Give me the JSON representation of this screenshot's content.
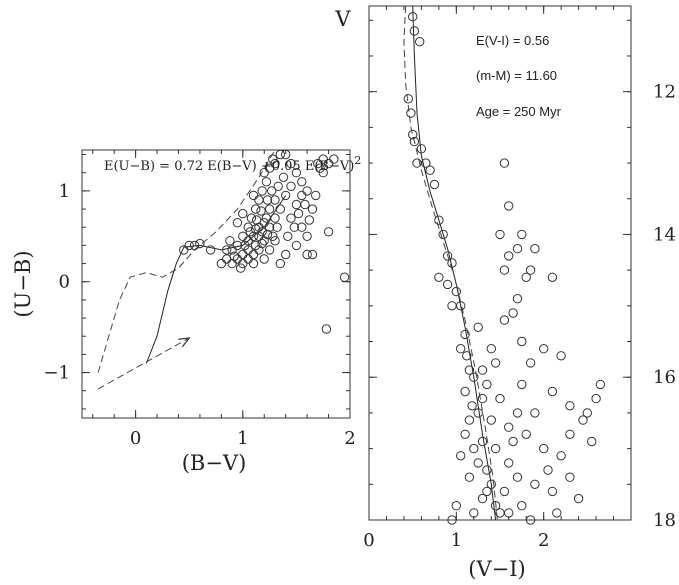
{
  "chart_data": [
    {
      "type": "scatter",
      "id": "two-color",
      "xlabel": "(B−V)",
      "ylabel": "(U−B)",
      "xlim": [
        -0.5,
        2.0
      ],
      "ylim": [
        1.45,
        -1.5
      ],
      "y_inverted": true,
      "x_ticks": [
        {
          "v": 0,
          "label": "0"
        },
        {
          "v": 1,
          "label": "1"
        },
        {
          "v": 2,
          "label": "2"
        }
      ],
      "y_ticks": [
        {
          "v": -1,
          "label": "−1"
        },
        {
          "v": 0,
          "label": "0"
        },
        {
          "v": 1,
          "label": "1"
        }
      ],
      "annotation": "E(U−B) = 0.72 E(B−V) +0.05 E(B−V)",
      "annotation_sup": "2",
      "reddening_arrow": {
        "from": [
          -0.35,
          -1.18
        ],
        "to": [
          0.5,
          -0.62
        ]
      },
      "solid_curve": [
        [
          0.1,
          -0.9
        ],
        [
          0.2,
          -0.6
        ],
        [
          0.3,
          -0.1
        ],
        [
          0.38,
          0.2
        ],
        [
          0.45,
          0.38
        ],
        [
          0.6,
          0.4
        ],
        [
          0.8,
          0.35
        ],
        [
          1.0,
          0.4
        ],
        [
          1.2,
          0.6
        ],
        [
          1.4,
          0.95
        ]
      ],
      "dashed_curve": [
        [
          -0.35,
          -1.0
        ],
        [
          -0.25,
          -0.6
        ],
        [
          -0.15,
          -0.2
        ],
        [
          -0.05,
          0.05
        ],
        [
          0.1,
          0.1
        ],
        [
          0.25,
          0.05
        ],
        [
          0.4,
          0.15
        ],
        [
          0.55,
          0.35
        ],
        [
          0.75,
          0.55
        ],
        [
          0.95,
          0.8
        ],
        [
          1.15,
          1.15
        ],
        [
          1.3,
          1.45
        ]
      ],
      "points": [
        [
          0.45,
          0.35
        ],
        [
          0.5,
          0.4
        ],
        [
          0.55,
          0.4
        ],
        [
          0.6,
          0.42
        ],
        [
          0.7,
          0.35
        ],
        [
          0.8,
          0.2
        ],
        [
          0.85,
          0.25
        ],
        [
          0.9,
          0.2
        ],
        [
          0.95,
          0.25
        ],
        [
          1.0,
          0.2
        ],
        [
          1.0,
          0.3
        ],
        [
          1.05,
          0.35
        ],
        [
          1.05,
          0.45
        ],
        [
          1.1,
          0.5
        ],
        [
          1.1,
          0.3
        ],
        [
          1.12,
          0.4
        ],
        [
          1.15,
          0.5
        ],
        [
          1.15,
          0.6
        ],
        [
          1.18,
          0.55
        ],
        [
          1.2,
          0.65
        ],
        [
          1.2,
          0.45
        ],
        [
          1.22,
          0.7
        ],
        [
          1.25,
          0.6
        ],
        [
          1.25,
          0.8
        ],
        [
          1.28,
          0.5
        ],
        [
          1.3,
          0.7
        ],
        [
          1.3,
          0.9
        ],
        [
          1.32,
          0.6
        ],
        [
          1.35,
          0.8
        ],
        [
          1.35,
          0.2
        ],
        [
          1.4,
          0.3
        ],
        [
          1.4,
          0.95
        ],
        [
          1.42,
          0.5
        ],
        [
          1.45,
          0.7
        ],
        [
          1.45,
          1.05
        ],
        [
          1.5,
          0.4
        ],
        [
          1.5,
          0.85
        ],
        [
          1.55,
          0.6
        ],
        [
          1.55,
          1.1
        ],
        [
          1.6,
          0.3
        ],
        [
          0.9,
          0.35
        ],
        [
          0.95,
          0.4
        ],
        [
          1.0,
          0.5
        ],
        [
          1.05,
          0.6
        ],
        [
          1.08,
          0.7
        ],
        [
          1.12,
          0.8
        ],
        [
          1.15,
          0.9
        ],
        [
          1.18,
          1.0
        ],
        [
          1.22,
          1.1
        ],
        [
          1.25,
          1.25
        ],
        [
          1.3,
          1.3
        ],
        [
          1.35,
          1.4
        ],
        [
          1.2,
          1.2
        ],
        [
          1.1,
          0.95
        ],
        [
          1.0,
          0.75
        ],
        [
          0.95,
          0.65
        ],
        [
          1.28,
          1.35
        ],
        [
          1.4,
          1.4
        ],
        [
          1.45,
          1.3
        ],
        [
          1.5,
          1.2
        ],
        [
          1.6,
          0.5
        ],
        [
          1.65,
          0.8
        ],
        [
          1.6,
          1.0
        ],
        [
          1.7,
          1.3
        ],
        [
          1.72,
          1.25
        ],
        [
          1.75,
          1.35
        ],
        [
          1.8,
          1.3
        ],
        [
          1.85,
          1.35
        ],
        [
          1.75,
          1.2
        ],
        [
          1.8,
          0.55
        ],
        [
          1.95,
          0.05
        ],
        [
          1.78,
          -0.52
        ],
        [
          1.65,
          0.3
        ],
        [
          1.68,
          0.95
        ],
        [
          1.55,
          0.95
        ],
        [
          1.1,
          0.2
        ],
        [
          1.2,
          0.25
        ],
        [
          1.25,
          0.35
        ],
        [
          1.3,
          0.45
        ],
        [
          1.15,
          0.35
        ],
        [
          1.05,
          0.25
        ],
        [
          0.98,
          0.15
        ],
        [
          0.92,
          0.28
        ],
        [
          0.88,
          0.45
        ],
        [
          0.85,
          0.35
        ],
        [
          1.02,
          0.4
        ],
        [
          1.07,
          0.55
        ],
        [
          1.13,
          0.68
        ],
        [
          1.17,
          0.78
        ],
        [
          1.23,
          0.9
        ],
        [
          1.27,
          1.0
        ],
        [
          1.33,
          1.05
        ],
        [
          1.38,
          1.15
        ],
        [
          1.48,
          0.6
        ],
        [
          1.52,
          0.75
        ],
        [
          1.58,
          0.85
        ],
        [
          1.62,
          0.68
        ],
        [
          1.12,
          0.58
        ],
        [
          1.18,
          0.42
        ],
        [
          1.23,
          0.52
        ]
      ]
    },
    {
      "type": "scatter",
      "id": "color-magnitude",
      "xlabel": "(V−I)",
      "ylabel": "V",
      "xlim": [
        0,
        3.0
      ],
      "ylim": [
        10.8,
        18.0
      ],
      "y_inverted": true,
      "x_ticks": [
        {
          "v": 0,
          "label": "0"
        },
        {
          "v": 1,
          "label": "1"
        },
        {
          "v": 2,
          "label": "2"
        }
      ],
      "y_ticks": [
        {
          "v": 12,
          "label": "12"
        },
        {
          "v": 14,
          "label": "14"
        },
        {
          "v": 16,
          "label": "16"
        },
        {
          "v": 18,
          "label": "18"
        }
      ],
      "annotations": [
        "E(V-I) = 0.56",
        "(m-M) = 11.60",
        "Age = 250 Myr"
      ],
      "solid_curve": [
        [
          0.5,
          10.8
        ],
        [
          0.52,
          11.5
        ],
        [
          0.55,
          12.3
        ],
        [
          0.6,
          12.9
        ],
        [
          0.7,
          13.4
        ],
        [
          0.8,
          13.8
        ],
        [
          0.9,
          14.2
        ],
        [
          1.0,
          14.7
        ],
        [
          1.1,
          15.3
        ],
        [
          1.2,
          16.0
        ],
        [
          1.3,
          16.8
        ],
        [
          1.4,
          17.5
        ],
        [
          1.45,
          18.0
        ]
      ],
      "dashed_curve": [
        [
          0.42,
          10.8
        ],
        [
          0.4,
          11.3
        ],
        [
          0.42,
          11.9
        ],
        [
          0.48,
          12.5
        ],
        [
          0.6,
          13.1
        ],
        [
          0.72,
          13.6
        ],
        [
          0.85,
          14.1
        ],
        [
          0.98,
          14.6
        ],
        [
          1.1,
          15.2
        ],
        [
          1.22,
          15.9
        ],
        [
          1.33,
          16.7
        ],
        [
          1.42,
          17.4
        ],
        [
          1.47,
          18.0
        ]
      ],
      "points": [
        [
          0.5,
          10.95
        ],
        [
          0.52,
          11.15
        ],
        [
          0.58,
          11.3
        ],
        [
          0.45,
          12.1
        ],
        [
          0.48,
          12.3
        ],
        [
          0.5,
          12.6
        ],
        [
          0.52,
          12.7
        ],
        [
          0.6,
          12.8
        ],
        [
          0.65,
          13.0
        ],
        [
          0.55,
          13.0
        ],
        [
          0.7,
          13.1
        ],
        [
          0.75,
          13.3
        ],
        [
          0.8,
          13.8
        ],
        [
          0.85,
          14.0
        ],
        [
          0.9,
          14.3
        ],
        [
          0.95,
          14.4
        ],
        [
          0.8,
          14.6
        ],
        [
          0.9,
          14.7
        ],
        [
          1.0,
          14.8
        ],
        [
          0.95,
          15.0
        ],
        [
          1.05,
          15.0
        ],
        [
          1.1,
          15.4
        ],
        [
          1.05,
          15.6
        ],
        [
          1.12,
          15.7
        ],
        [
          1.15,
          15.9
        ],
        [
          1.1,
          16.2
        ],
        [
          1.2,
          16.0
        ],
        [
          1.18,
          16.4
        ],
        [
          1.25,
          16.5
        ],
        [
          1.3,
          16.3
        ],
        [
          1.1,
          16.8
        ],
        [
          1.2,
          17.0
        ],
        [
          1.3,
          16.9
        ],
        [
          1.25,
          17.2
        ],
        [
          1.35,
          17.3
        ],
        [
          1.15,
          17.4
        ],
        [
          1.4,
          17.5
        ],
        [
          1.3,
          17.7
        ],
        [
          1.45,
          17.8
        ],
        [
          1.2,
          17.9
        ],
        [
          1.5,
          17.9
        ],
        [
          1.55,
          17.6
        ],
        [
          1.6,
          17.2
        ],
        [
          1.65,
          16.9
        ],
        [
          1.7,
          16.5
        ],
        [
          1.4,
          16.6
        ],
        [
          1.35,
          16.1
        ],
        [
          1.45,
          15.8
        ],
        [
          1.55,
          15.2
        ],
        [
          1.6,
          14.3
        ],
        [
          1.5,
          14.0
        ],
        [
          1.55,
          14.5
        ],
        [
          1.7,
          14.2
        ],
        [
          1.75,
          14.0
        ],
        [
          1.8,
          14.6
        ],
        [
          1.9,
          14.2
        ],
        [
          1.85,
          14.5
        ],
        [
          2.1,
          14.6
        ],
        [
          1.7,
          14.9
        ],
        [
          1.65,
          15.1
        ],
        [
          1.55,
          13.0
        ],
        [
          1.6,
          13.6
        ],
        [
          1.75,
          15.5
        ],
        [
          1.85,
          15.8
        ],
        [
          2.0,
          15.6
        ],
        [
          2.2,
          15.7
        ],
        [
          1.75,
          16.1
        ],
        [
          1.9,
          16.5
        ],
        [
          2.1,
          16.2
        ],
        [
          2.3,
          16.4
        ],
        [
          1.8,
          16.8
        ],
        [
          2.0,
          17.0
        ],
        [
          2.05,
          17.3
        ],
        [
          2.2,
          17.1
        ],
        [
          2.3,
          17.4
        ],
        [
          2.1,
          17.6
        ],
        [
          2.4,
          17.7
        ],
        [
          1.9,
          17.5
        ],
        [
          1.75,
          17.8
        ],
        [
          2.15,
          17.9
        ],
        [
          2.5,
          16.5
        ],
        [
          2.6,
          16.3
        ],
        [
          2.65,
          16.1
        ],
        [
          2.45,
          16.6
        ],
        [
          2.3,
          16.8
        ],
        [
          2.55,
          16.9
        ],
        [
          1.0,
          17.8
        ],
        [
          0.95,
          18.0
        ],
        [
          1.25,
          15.3
        ],
        [
          1.4,
          15.6
        ],
        [
          1.3,
          15.9
        ],
        [
          1.5,
          16.3
        ],
        [
          1.15,
          16.6
        ],
        [
          1.6,
          16.7
        ],
        [
          1.45,
          17.0
        ],
        [
          1.05,
          17.1
        ],
        [
          1.7,
          17.4
        ],
        [
          1.35,
          17.6
        ],
        [
          1.6,
          17.9
        ],
        [
          1.85,
          18.0
        ]
      ]
    }
  ]
}
